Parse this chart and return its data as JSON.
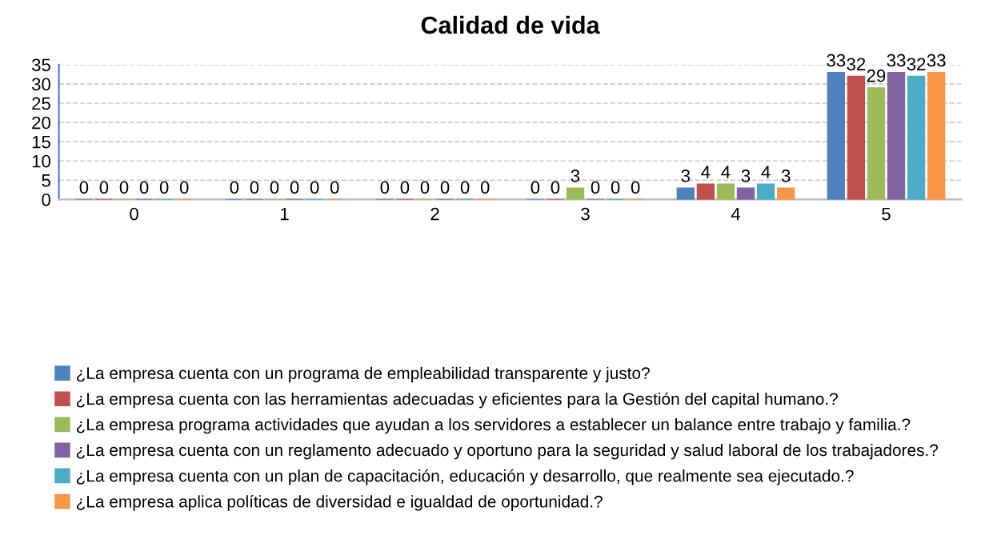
{
  "chart_data": {
    "type": "bar",
    "title": "Calidad de vida",
    "categories": [
      "0",
      "1",
      "2",
      "3",
      "4",
      "5"
    ],
    "series": [
      {
        "name": "¿La empresa cuenta con un programa de empleabilidad transparente y justo?",
        "color": "#4f81bd",
        "values": [
          0,
          0,
          0,
          0,
          3,
          33
        ]
      },
      {
        "name": "¿La empresa cuenta con las herramientas adecuadas y eficientes para la Gestión del capital humano.?",
        "color": "#c0504d",
        "values": [
          0,
          0,
          0,
          0,
          4,
          32
        ]
      },
      {
        "name": "¿La empresa programa actividades que ayudan a los servidores a establecer un balance entre trabajo y familia.?",
        "color": "#9bbb59",
        "values": [
          0,
          0,
          0,
          3,
          4,
          29
        ]
      },
      {
        "name": "¿La empresa cuenta con un reglamento adecuado y oportuno para la seguridad y salud laboral de los trabajadores.?",
        "color": "#8064a2",
        "values": [
          0,
          0,
          0,
          0,
          3,
          33
        ]
      },
      {
        "name": "¿La empresa cuenta con un plan de capacitación, educación y desarrollo, que realmente sea ejecutado.?",
        "color": "#4bacc6",
        "values": [
          0,
          0,
          0,
          0,
          4,
          32
        ]
      },
      {
        "name": "¿La empresa aplica políticas de diversidad e igualdad de oportunidad.?",
        "color": "#f79646",
        "values": [
          0,
          0,
          0,
          0,
          3,
          33
        ]
      }
    ],
    "ylim": [
      0,
      35
    ],
    "yticks": [
      0,
      5,
      10,
      15,
      20,
      25,
      30,
      35
    ],
    "grid": "y",
    "legend": "bottom",
    "data_labels": true
  }
}
